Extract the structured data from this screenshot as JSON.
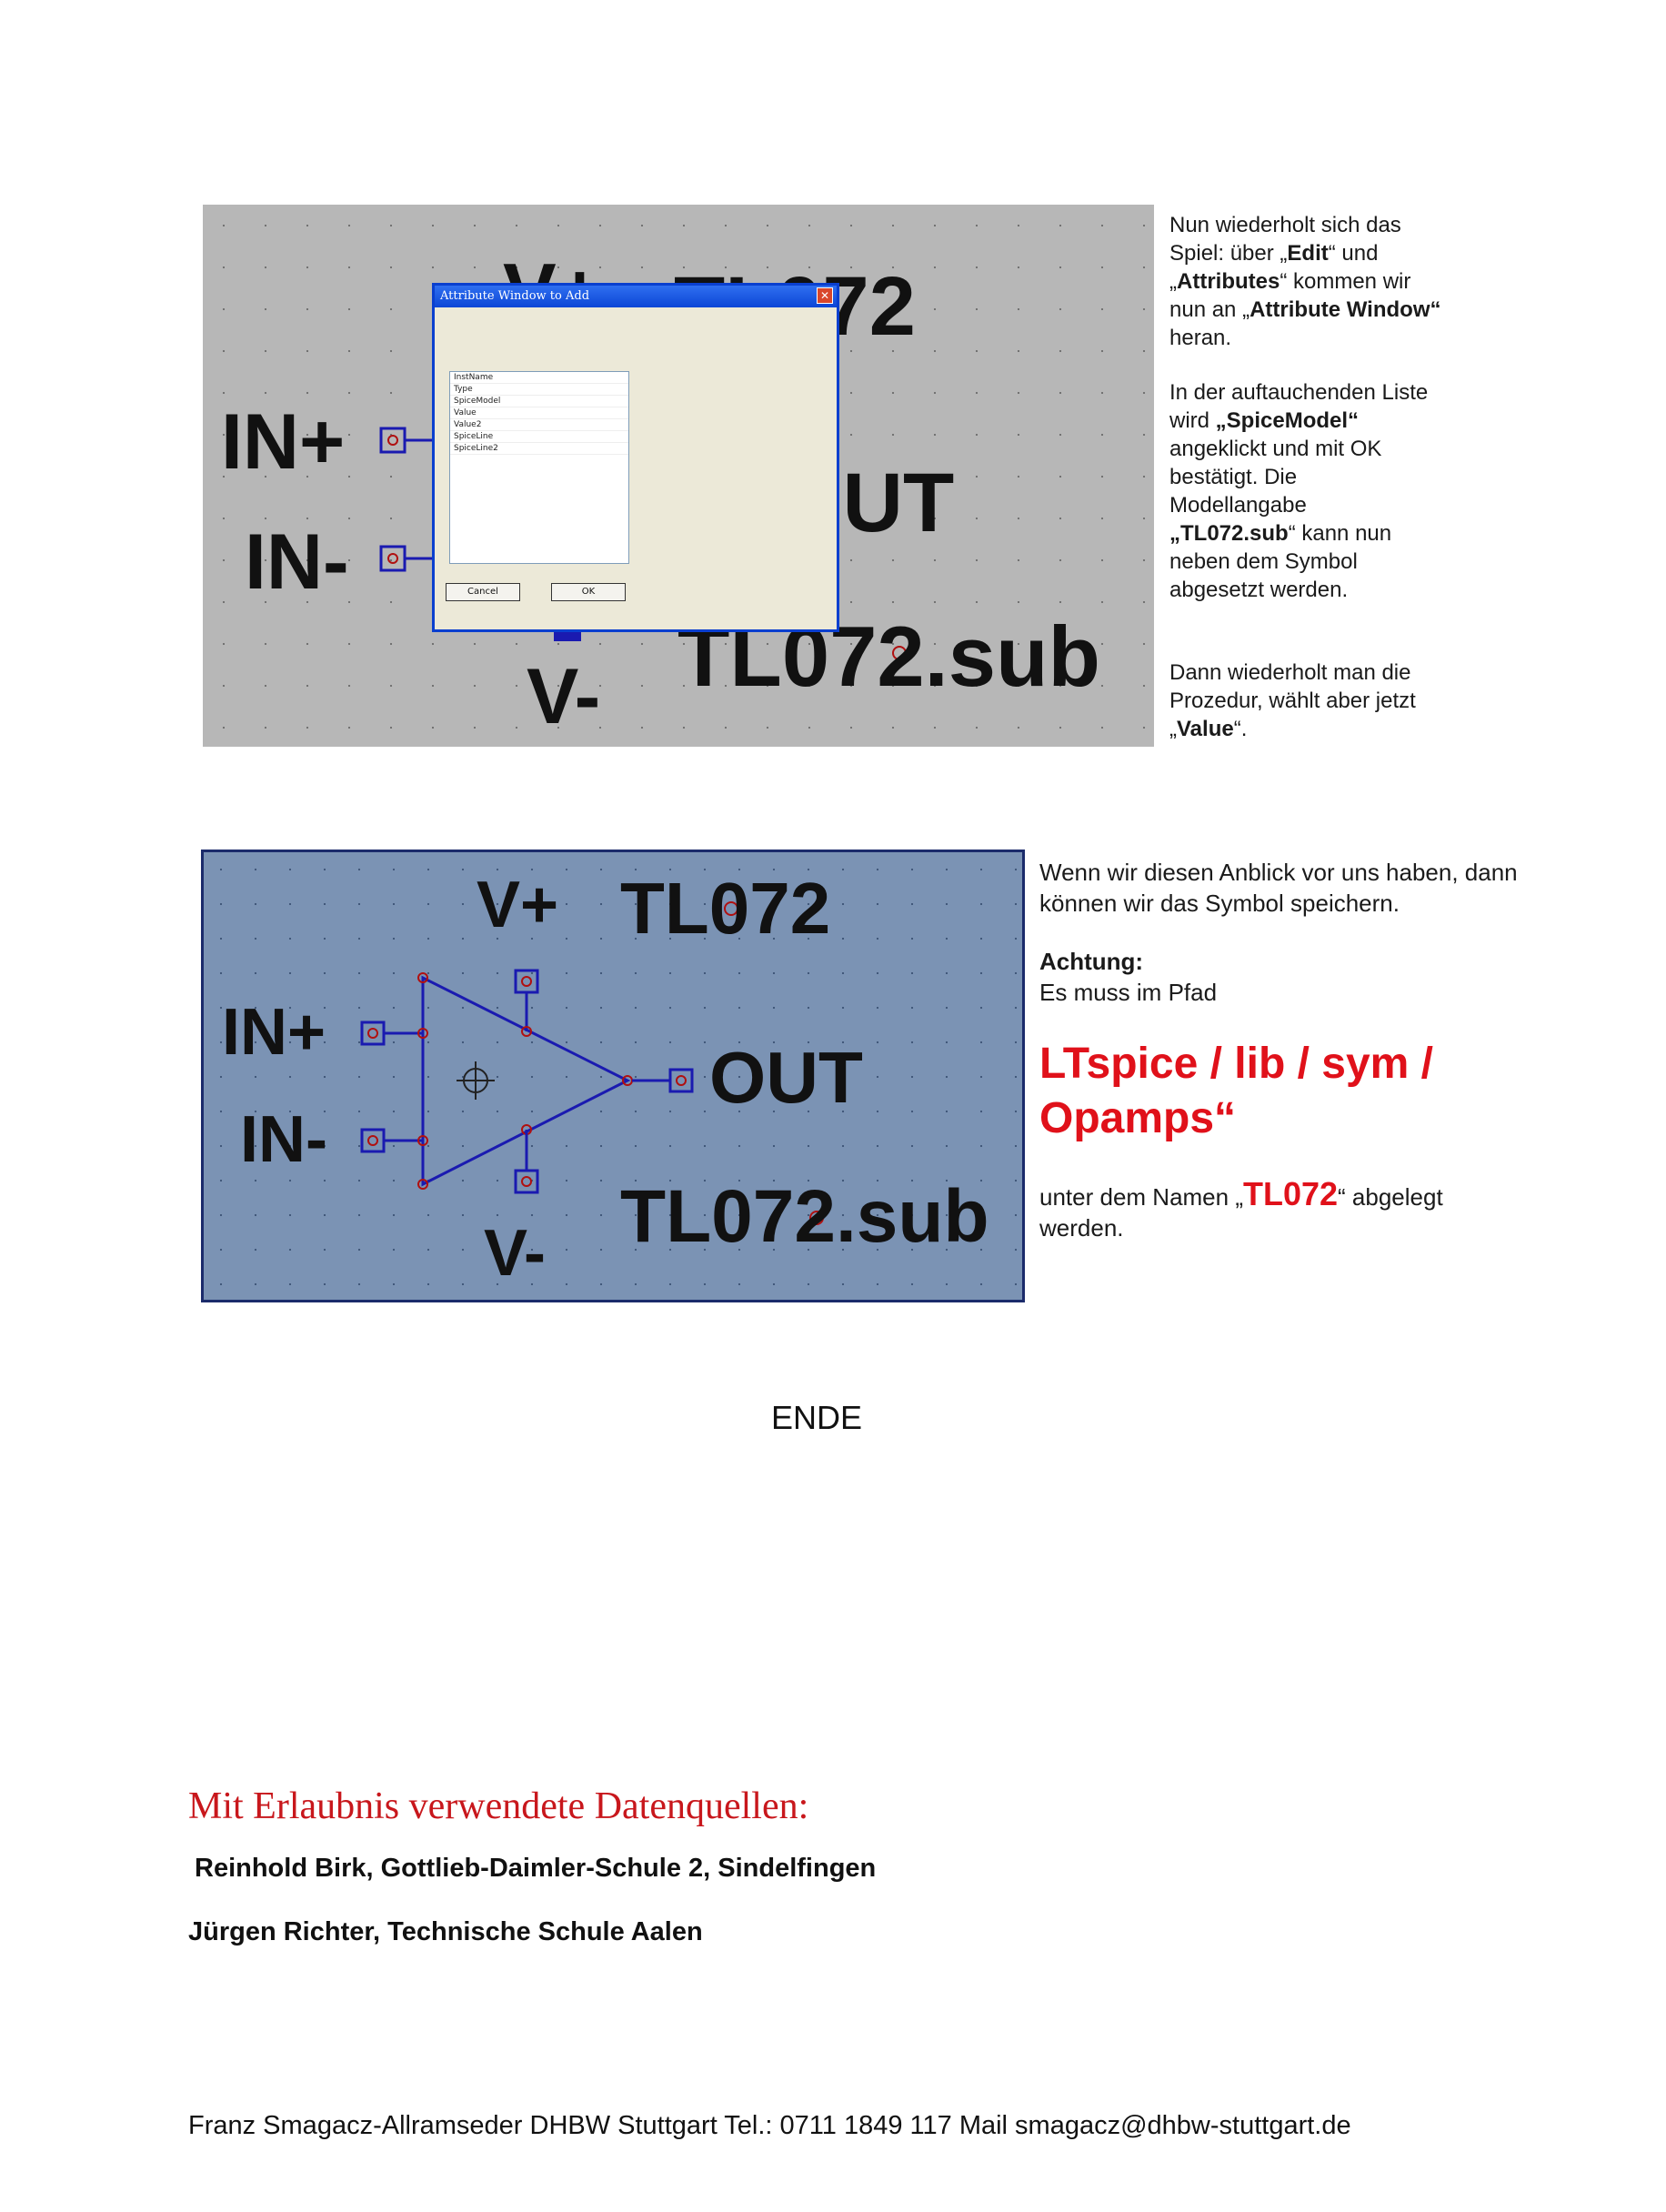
{
  "screenshot1": {
    "labels": {
      "vplus": "V+",
      "model": "TL072",
      "in_plus": "IN+",
      "in_minus": "IN-",
      "out": "OUT",
      "sub": "TL072.sub",
      "vminus": "V-"
    },
    "dialog": {
      "title": "Attribute Window to Add",
      "close_glyph": "✕",
      "items": [
        "InstName",
        "Type",
        "SpiceModel",
        "Value",
        "Value2",
        "SpiceLine",
        "SpiceLine2"
      ],
      "cancel_label": "Cancel",
      "ok_label": "OK"
    }
  },
  "text1": {
    "p1": {
      "a": "Nun wiederholt sich das Spiel: über „",
      "b1": "Edit",
      "c": "“ und „",
      "b2": "Attributes",
      "d": "“ kommen wir nun an „",
      "b3": "Attribute Window“",
      "e": " heran."
    },
    "p2": {
      "a": "In der auftauchenden Liste wird ",
      "b1": "„SpiceModel“",
      "c": " angeklickt und mit OK bestätigt. Die Modellangabe ",
      "b2": "„TL072.sub",
      "d": "“ kann nun neben dem Symbol abgesetzt werden."
    },
    "p3": {
      "a": "Dann wiederholt man die Prozedur, wählt aber jetzt „",
      "b1": "Value",
      "c": "“."
    }
  },
  "screenshot2": {
    "labels": {
      "vplus": "V+",
      "model": "TL072",
      "in_plus": "IN+",
      "in_minus": "IN-",
      "out": "OUT",
      "sub": "TL072.sub",
      "vminus": "V-"
    }
  },
  "text2": {
    "p1": "Wenn wir diesen Anblick vor uns haben, dann können wir das Symbol speichern.",
    "achtung": "Achtung:",
    "p2": "Es muss im Pfad",
    "path": "LTspice / lib / sym / Opamps“",
    "p3a": "unter dem Namen „",
    "p3name": "TL072",
    "p3b": "“ abgelegt werden."
  },
  "ende": "ENDE",
  "credits": {
    "title": "Mit Erlaubnis verwendete Datenquellen:",
    "line1": "Reinhold Birk, Gottlieb-Daimler-Schule 2, Sindelfingen",
    "line2": "Jürgen Richter, Technische Schule Aalen"
  },
  "footer": "Franz Smagacz-Allramseder DHBW Stuttgart Tel.: 0711 1849 117 Mail smagacz@dhbw-stuttgart.de",
  "colors": {
    "accent_red": "#e0111a",
    "credits_red": "#c8171c",
    "schematic_blue": "#1a1ab0",
    "pin_red": "#b01010"
  }
}
